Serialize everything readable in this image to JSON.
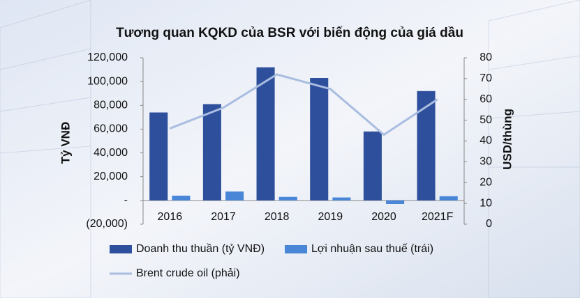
{
  "chart_data": {
    "type": "bar",
    "title": "Tương quan KQKD của BSR với biến động của giá dầu",
    "y_label": "Tỷ VNĐ",
    "y2_label": "USD/thùng",
    "categories": [
      "2016",
      "2017",
      "2018",
      "2019",
      "2020",
      "2021F"
    ],
    "series": [
      {
        "name": "Doanh thu thuần (tỷ VNĐ)",
        "color": "#2e4f9b",
        "type": "bar",
        "values": [
          74000,
          81000,
          112000,
          103000,
          58000,
          92000
        ]
      },
      {
        "name": "Lợi nhuận sau thuế (trái)",
        "color": "#4a86d8",
        "type": "bar",
        "values": [
          4000,
          7500,
          3000,
          2500,
          -3000,
          3500
        ]
      },
      {
        "name": "Brent crude oil (phải)",
        "color": "#a9bde0",
        "type": "line",
        "axis": "y2",
        "values": [
          46,
          56,
          72,
          65,
          43,
          60
        ]
      }
    ],
    "ylim": [
      -20000,
      120000
    ],
    "yticks": [
      {
        "value": -20000,
        "label": "(20,000)"
      },
      {
        "value": 0,
        "label": "-"
      },
      {
        "value": 20000,
        "label": "20,000"
      },
      {
        "value": 40000,
        "label": "40,000"
      },
      {
        "value": 60000,
        "label": "60,000"
      },
      {
        "value": 80000,
        "label": "80,000"
      },
      {
        "value": 100000,
        "label": "100,000"
      },
      {
        "value": 120000,
        "label": "120,000"
      }
    ],
    "y2lim": [
      0,
      80
    ],
    "y2ticks": [
      0,
      10,
      20,
      30,
      40,
      50,
      60,
      70,
      80
    ]
  }
}
